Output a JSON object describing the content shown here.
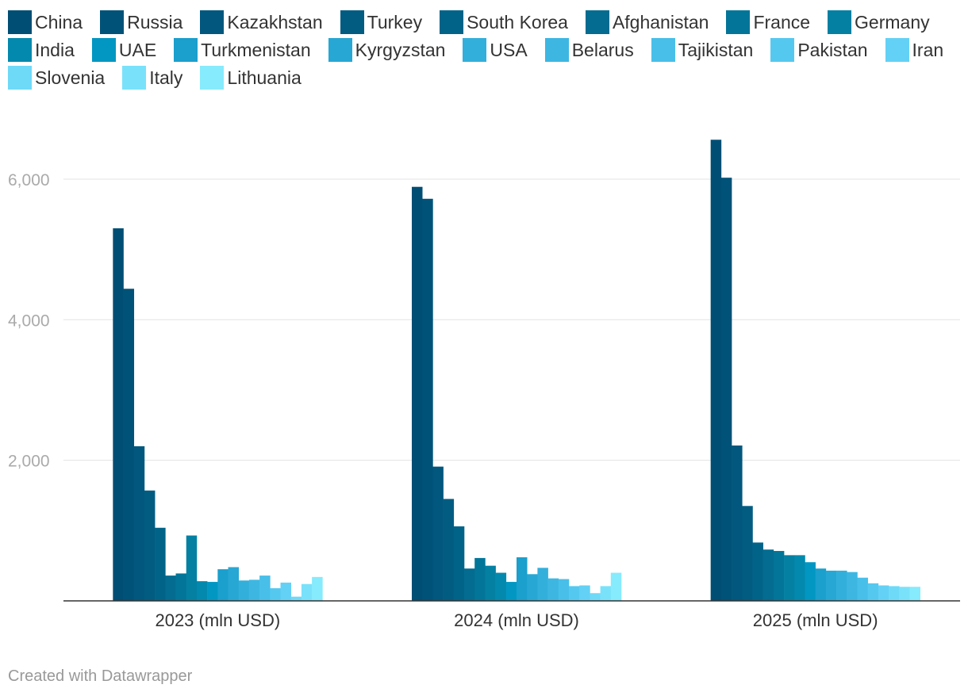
{
  "chart_data": {
    "type": "bar",
    "categories": [
      "2023 (mln USD)",
      "2024 (mln USD)",
      "2025 (mln USD)"
    ],
    "ylim": [
      0,
      6800
    ],
    "yticks": [
      2000,
      4000,
      6000
    ],
    "ytick_labels": [
      "2,000",
      "4,000",
      "6,000"
    ],
    "grid": true,
    "legend_position": "top",
    "series": [
      {
        "name": "China",
        "color": "#004e74",
        "values": [
          5300,
          5890,
          6560
        ]
      },
      {
        "name": "Russia",
        "color": "#015278",
        "values": [
          4440,
          5720,
          6020
        ]
      },
      {
        "name": "Kazakhstan",
        "color": "#01577d",
        "values": [
          2200,
          1910,
          2210
        ]
      },
      {
        "name": "Turkey",
        "color": "#025c82",
        "values": [
          1570,
          1450,
          1350
        ]
      },
      {
        "name": "South Korea",
        "color": "#026388",
        "values": [
          1040,
          1060,
          830
        ]
      },
      {
        "name": "Afghanistan",
        "color": "#036c90",
        "values": [
          360,
          460,
          730
        ]
      },
      {
        "name": "France",
        "color": "#037598",
        "values": [
          390,
          610,
          710
        ]
      },
      {
        "name": "Germany",
        "color": "#0480a3",
        "values": [
          930,
          500,
          650
        ]
      },
      {
        "name": "India",
        "color": "#0389ad",
        "values": [
          280,
          400,
          650
        ]
      },
      {
        "name": "UAE",
        "color": "#0197c2",
        "values": [
          270,
          270,
          550
        ]
      },
      {
        "name": "Turkmenistan",
        "color": "#1b9fcc",
        "values": [
          450,
          620,
          460
        ]
      },
      {
        "name": "Kyrgyzstan",
        "color": "#27a7d3",
        "values": [
          480,
          380,
          430
        ]
      },
      {
        "name": "USA",
        "color": "#33afdb",
        "values": [
          290,
          470,
          430
        ]
      },
      {
        "name": "Belarus",
        "color": "#3db7e2",
        "values": [
          300,
          320,
          410
        ]
      },
      {
        "name": "Tajikistan",
        "color": "#48bfe9",
        "values": [
          360,
          310,
          330
        ]
      },
      {
        "name": "Pakistan",
        "color": "#55c8f0",
        "values": [
          180,
          210,
          250
        ]
      },
      {
        "name": "Iran",
        "color": "#63d1f5",
        "values": [
          260,
          220,
          220
        ]
      },
      {
        "name": "Slovenia",
        "color": "#6fd9f8",
        "values": [
          60,
          110,
          210
        ]
      },
      {
        "name": "Italy",
        "color": "#79e2fa",
        "values": [
          240,
          210,
          200
        ]
      },
      {
        "name": "Lithuania",
        "color": "#86ebfc",
        "values": [
          340,
          400,
          200
        ]
      }
    ]
  },
  "footer": {
    "credit": "Created with Datawrapper"
  }
}
